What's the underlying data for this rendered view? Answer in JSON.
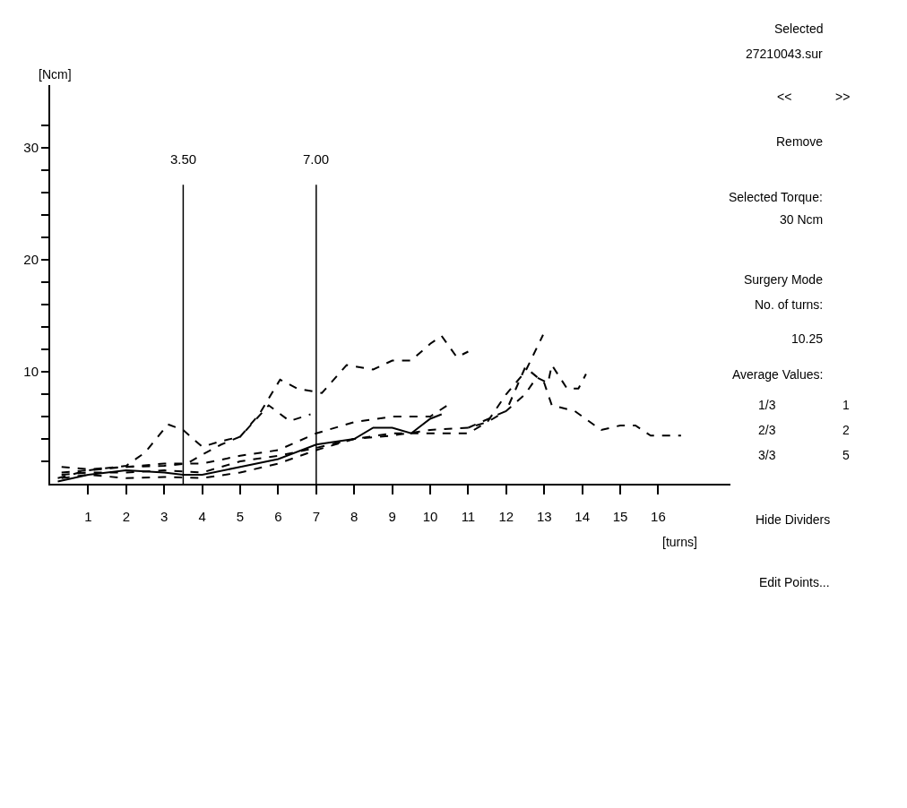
{
  "chart_data": {
    "type": "line",
    "xlabel": "[turns]",
    "ylabel": "[Ncm]",
    "xlim": [
      0,
      17.9
    ],
    "ylim": [
      0,
      35.6
    ],
    "xticks": [
      1,
      2,
      3,
      4,
      5,
      6,
      7,
      8,
      9,
      10,
      11,
      12,
      13,
      14,
      15,
      16
    ],
    "yticks": [
      {
        "value": 2,
        "label": null
      },
      {
        "value": 4,
        "label": null
      },
      {
        "value": 6,
        "label": null
      },
      {
        "value": 8,
        "label": null
      },
      10,
      {
        "value": 12,
        "label": null
      },
      {
        "value": 14,
        "label": null
      },
      {
        "value": 16,
        "label": null
      },
      {
        "value": 18,
        "label": null
      },
      20,
      {
        "value": 22,
        "label": null
      },
      {
        "value": 24,
        "label": null
      },
      {
        "value": 26,
        "label": null
      },
      {
        "value": 28,
        "label": null
      },
      30,
      {
        "value": 32,
        "label": null
      }
    ],
    "marker": "none",
    "ref_lines": [
      {
        "axis": "x",
        "value": 3.5,
        "label": "3.50",
        "color": "#000000"
      },
      {
        "axis": "x",
        "value": 7.0,
        "label": "7.00",
        "color": "#000000"
      }
    ],
    "series": [
      {
        "color": "#000000",
        "line_style": "dashed",
        "x": [
          0.2,
          1,
          2,
          2.5,
          3.1,
          3.5,
          4,
          4.5,
          5,
          5.5,
          6.05,
          6.5,
          7.15,
          7.8,
          8.5,
          9,
          9.5,
          10,
          10.3,
          10.7,
          11
        ],
        "values": [
          0.5,
          1.2,
          1.6,
          2.8,
          5.3,
          4.8,
          3.3,
          3.8,
          4.2,
          6.2,
          9.3,
          8.5,
          8.1,
          10.6,
          10.2,
          11,
          11,
          12.5,
          13.2,
          11.3,
          11.8
        ]
      },
      {
        "color": "#000000",
        "line_style": "dashed",
        "x": [
          0.3,
          1,
          2,
          3,
          3.6,
          4,
          4.5,
          5,
          5.75,
          6.3,
          6.85
        ],
        "values": [
          1,
          1.2,
          1.5,
          1.6,
          1.8,
          2.6,
          3.5,
          4.2,
          7,
          5.6,
          6.2
        ]
      },
      {
        "color": "#000000",
        "line_style": "dashed",
        "x": [
          0.3,
          1,
          2,
          3,
          4,
          5,
          6,
          7,
          8,
          9,
          10,
          10.45
        ],
        "values": [
          1.5,
          1.3,
          1.5,
          1.8,
          1.8,
          2.5,
          3,
          4.5,
          5.5,
          6,
          6,
          7
        ]
      },
      {
        "color": "#000000",
        "line_style": "solid",
        "x": [
          0.2,
          1,
          2,
          3,
          3.5,
          4,
          5,
          6,
          7,
          8,
          8.5,
          9,
          9.5,
          10,
          10.3
        ],
        "values": [
          0.2,
          0.8,
          1.2,
          1,
          0.8,
          0.8,
          1.5,
          2.2,
          3.5,
          4,
          5,
          5,
          4.5,
          5.8,
          6.2
        ]
      },
      {
        "color": "#000000",
        "line_style": "dashed",
        "x": [
          0.3,
          1,
          2,
          3,
          4,
          5,
          6,
          7,
          8,
          9,
          10,
          11,
          11.5,
          12,
          12.5,
          12.97
        ],
        "values": [
          0.5,
          0.8,
          0.5,
          0.6,
          0.5,
          1,
          1.8,
          3,
          4,
          4.5,
          4.5,
          4.5,
          5.5,
          8,
          10,
          13.3
        ]
      },
      {
        "color": "#000000",
        "line_style": "dashed",
        "x": [
          0.3,
          1,
          2,
          3,
          4,
          5,
          6,
          7,
          8,
          9,
          10,
          11,
          11.5,
          12,
          12.5,
          12.8,
          13.1,
          13.2,
          13.6,
          13.9,
          14.1
        ],
        "values": [
          0.8,
          1,
          1,
          1.2,
          1,
          2,
          2.5,
          3.2,
          4,
          4.3,
          4.8,
          5,
          5.5,
          6.5,
          8,
          9.5,
          9,
          10.6,
          8.5,
          8.5,
          9.8
        ]
      },
      {
        "color": "#000000",
        "line_style": "dashed",
        "x": [
          11,
          12,
          12.5,
          13,
          13.2,
          13.8,
          14.5,
          15,
          15.4,
          15.8,
          16.6
        ],
        "values": [
          5,
          6.5,
          10.4,
          9,
          7,
          6.5,
          4.8,
          5.2,
          5.2,
          4.3,
          4.3
        ]
      }
    ],
    "annotations": [
      "Selected",
      "27210043.sur",
      "<<",
      ">>",
      "Remove",
      "Selected Torque:",
      "30 Ncm",
      "Surgery Mode",
      "No. of turns:",
      "10.25",
      "Average Values:",
      "1/3",
      "1",
      "2/3",
      "2",
      "3/3",
      "5",
      "Hide Dividers",
      "Edit Points..."
    ]
  }
}
